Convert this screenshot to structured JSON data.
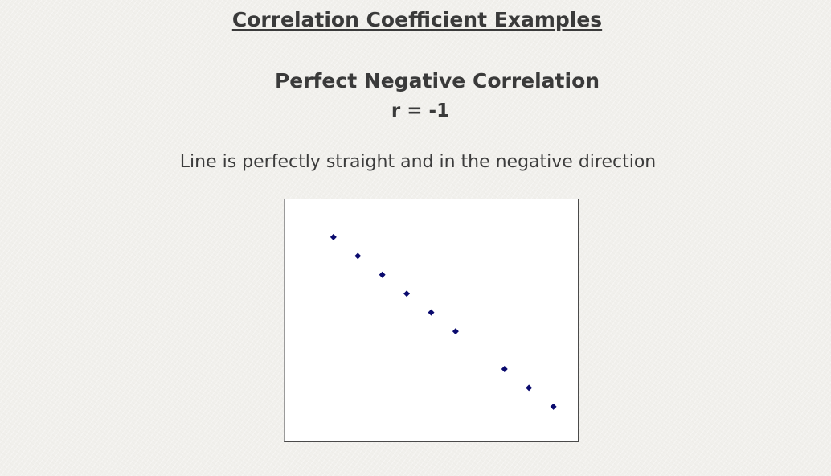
{
  "page": {
    "title": "Correlation Coefficient Examples"
  },
  "chart_data": {
    "type": "scatter",
    "title": "Perfect Negative Correlation",
    "subtitle": "r = -1",
    "description": "Line is perfectly straight and in the negative direction",
    "xlabel": "",
    "ylabel": "",
    "x": [
      1,
      2,
      3,
      4,
      5,
      6,
      8,
      9,
      10
    ],
    "y": [
      10,
      9,
      8,
      7,
      6,
      5,
      3,
      2,
      1
    ],
    "xlim": [
      -1,
      11
    ],
    "ylim": [
      -0.8,
      12
    ],
    "grid": false,
    "axes_visible": false,
    "marker": "diamond",
    "marker_color": "#0a0a6e"
  }
}
